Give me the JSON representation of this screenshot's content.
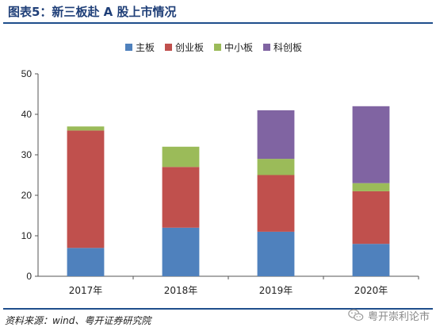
{
  "header": {
    "title": "图表5：新三板赴 A 股上市情况"
  },
  "footer": {
    "source": "资料来源：wind、粤开证券研究院"
  },
  "watermark": {
    "text": "粤开崇利论市",
    "icon": "wechat-icon"
  },
  "chart_data": {
    "type": "bar",
    "stacked": true,
    "categories": [
      "2017年",
      "2018年",
      "2019年",
      "2020年"
    ],
    "series": [
      {
        "name": "主板",
        "color": "#4f81bd",
        "values": [
          7,
          12,
          11,
          8
        ]
      },
      {
        "name": "创业板",
        "color": "#c0504d",
        "values": [
          29,
          15,
          14,
          13
        ]
      },
      {
        "name": "中小板",
        "color": "#9bbb59",
        "values": [
          1,
          5,
          4,
          2
        ]
      },
      {
        "name": "科创板",
        "color": "#8064a2",
        "values": [
          0,
          0,
          12,
          19
        ]
      }
    ],
    "ylim": [
      0,
      50
    ],
    "yticks": [
      0,
      10,
      20,
      30,
      40,
      50
    ],
    "legend": "top-center",
    "grid": false
  }
}
